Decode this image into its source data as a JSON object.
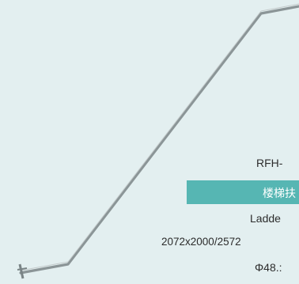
{
  "product": {
    "code": "RFH-",
    "name_cn": "楼梯扶",
    "name_en": "Ladde",
    "dimensions": "2072x2000/2572",
    "pipe": "Φ48.:"
  },
  "colors": {
    "background": "#e3eff0",
    "name_bar": "#56b6b3",
    "rail": "#7f8a8c"
  },
  "icons": {
    "rail": "stair-handrail-drawing"
  }
}
